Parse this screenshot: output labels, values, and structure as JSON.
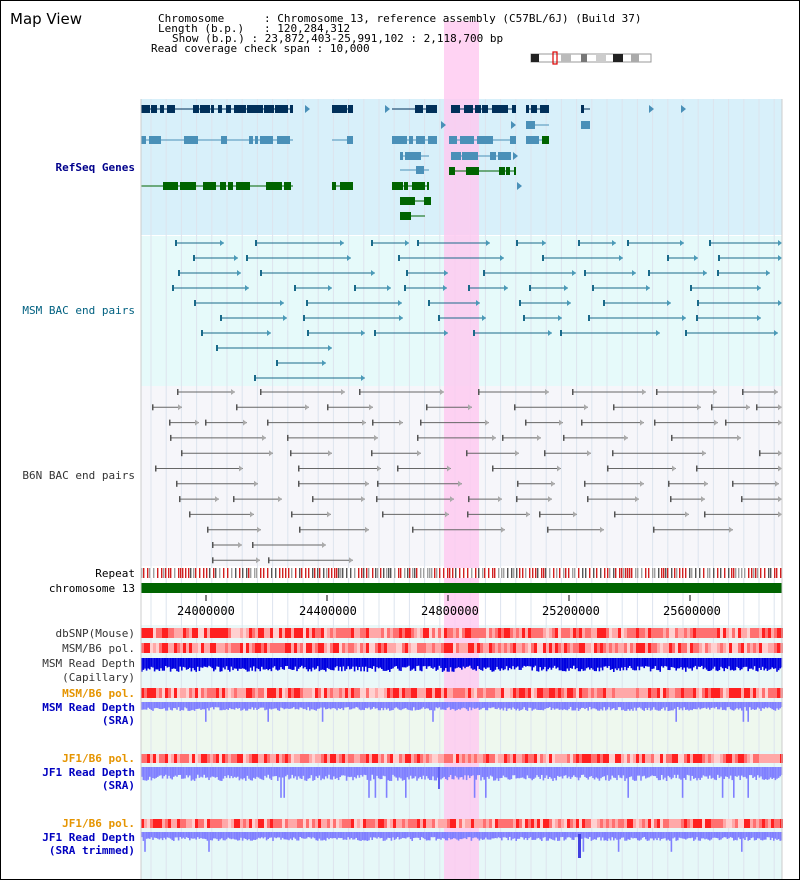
{
  "title": "Map View",
  "info": {
    "chromosome_label": "Chromosome",
    "chromosome_value": "Chromosome 13, reference assembly (C57BL/6J) (Build 37)",
    "length_label": "Length (b.p.)",
    "length_value": "120,284,312",
    "show_label": "Show (b.p.)",
    "show_value": "23,872,403-25,991,102 : 2,118,700 bp",
    "coverage_label": "Read coverage check span",
    "coverage_value": "10,000"
  },
  "tracks": {
    "refseq": "RefSeq Genes",
    "msm_bac": "MSM BAC end pairs",
    "b6n_bac": "B6N BAC end pairs",
    "repeat": "Repeat",
    "chromosome": "chromosome 13",
    "dbsnp": "dbSNP(Mouse)",
    "msm_b6_pol": "MSM/B6 pol.",
    "msm_depth_cap_1": "MSM Read Depth",
    "msm_depth_cap_2": "(Capillary)",
    "msm_b6_pol_sra": "MSM/B6 pol.",
    "msm_depth_sra_1": "MSM Read Depth",
    "msm_depth_sra_2": "(SRA)",
    "jf1_b6_pol_1": "JF1/B6 pol.",
    "jf1_depth_1": "JF1 Read Depth",
    "jf1_depth_1b": "(SRA)",
    "jf1_b6_pol_2": "JF1/B6 pol.",
    "jf1_depth_2": "JF1 Read Depth",
    "jf1_depth_2b": "(SRA trimmed)"
  },
  "axis": {
    "ticks": [
      "24000000",
      "24400000",
      "24800000",
      "25200000",
      "25600000"
    ]
  },
  "colors": {
    "refseq_bg": "#d8f0fa",
    "msm_bg": "#e6fafa",
    "b6n_bg": "#f6f6fa",
    "highlight": "#ffc8f0",
    "gene_dark": "#00305a",
    "gene_mid": "#4a90b8",
    "gene_green": "#006400",
    "chromosome_bar": "#006400",
    "depth_blue": "#0000e0",
    "depth_light": "#8080ff"
  }
}
